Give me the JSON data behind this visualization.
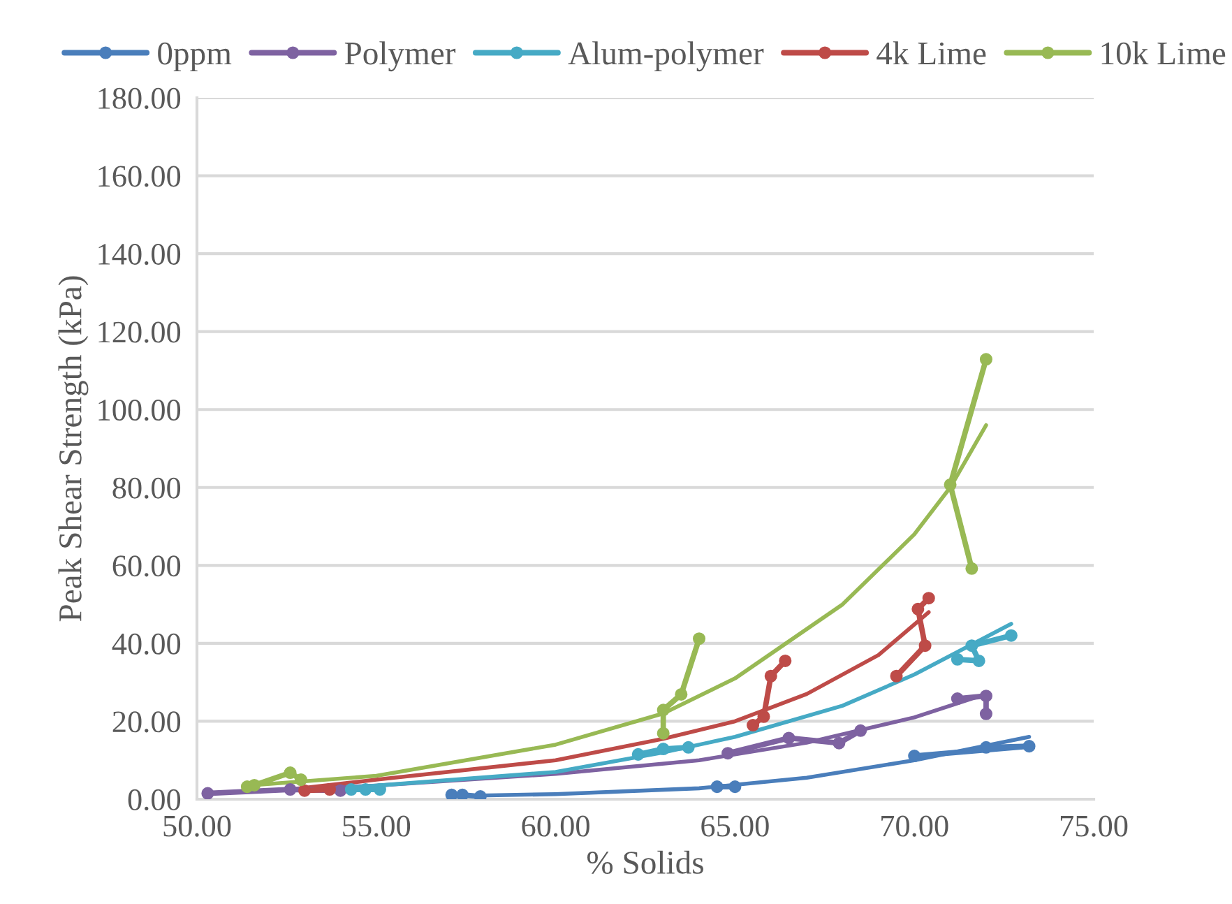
{
  "chart_data": {
    "type": "line",
    "xlabel": "% Solids",
    "ylabel": "Peak Shear Strength (kPa)",
    "marker": "circle",
    "grid": "y",
    "legend": "top",
    "xlim": [
      50,
      75
    ],
    "xticks": [
      {
        "value": 50,
        "label": "50.00"
      },
      {
        "value": 55,
        "label": "55.00"
      },
      {
        "value": 60,
        "label": "60.00"
      },
      {
        "value": 65,
        "label": "65.00"
      },
      {
        "value": 70,
        "label": "70.00"
      },
      {
        "value": 75,
        "label": "75.00"
      }
    ],
    "ylim": [
      0,
      180
    ],
    "yticks": [
      {
        "value": 0,
        "label": "0.00"
      },
      {
        "value": 20,
        "label": "20.00"
      },
      {
        "value": 40,
        "label": "40.00"
      },
      {
        "value": 60,
        "label": "60.00"
      },
      {
        "value": 80,
        "label": "80.00"
      },
      {
        "value": 100,
        "label": "100.00"
      },
      {
        "value": 120,
        "label": "120.00"
      },
      {
        "value": 140,
        "label": "140.00"
      },
      {
        "value": 160,
        "label": "160.00"
      },
      {
        "value": 180,
        "label": "180.00"
      }
    ],
    "series": [
      {
        "name": "0ppm",
        "color": "#4a7ebb",
        "x": [
          57.1,
          57.4,
          57.9
        ],
        "values": [
          1.1,
          1.1,
          0.7
        ]
      },
      {
        "color": "#4a7ebb",
        "x": [
          64.5,
          65.0
        ],
        "values": [
          3.2,
          3.2
        ]
      },
      {
        "color": "#4a7ebb",
        "x": [
          70.0,
          73.2,
          72.0
        ],
        "values": [
          11.1,
          13.6,
          13.3
        ]
      },
      {
        "name": "Polymer",
        "color": "#7e62a1",
        "x": [
          50.3,
          52.6,
          54.0
        ],
        "values": [
          1.5,
          2.5,
          2.2
        ]
      },
      {
        "color": "#7e62a1",
        "x": [
          64.8,
          66.5,
          67.9,
          68.5
        ],
        "values": [
          11.8,
          15.7,
          14.4,
          17.6
        ]
      },
      {
        "color": "#7e62a1",
        "x": [
          71.2,
          72.0,
          72.0
        ],
        "values": [
          25.8,
          26.5,
          21.9
        ]
      },
      {
        "name": "Alum-polymer",
        "color": "#46aac5",
        "x": [
          54.3,
          54.7,
          55.1
        ],
        "values": [
          2.5,
          2.5,
          2.5
        ]
      },
      {
        "color": "#46aac5",
        "x": [
          62.3,
          63.0,
          63.7
        ],
        "values": [
          11.5,
          12.9,
          13.3
        ]
      },
      {
        "color": "#46aac5",
        "x": [
          71.2,
          71.8,
          71.6,
          72.7
        ],
        "values": [
          35.9,
          35.5,
          39.4,
          42.0
        ]
      },
      {
        "name": "4k Lime",
        "color": "#be4b48",
        "x": [
          53.0,
          53.7
        ],
        "values": [
          2.2,
          2.5
        ]
      },
      {
        "color": "#be4b48",
        "x": [
          65.5,
          65.8,
          66.0,
          66.4
        ],
        "values": [
          19.0,
          21.2,
          31.6,
          35.5
        ]
      },
      {
        "color": "#be4b48",
        "x": [
          69.5,
          70.3,
          70.1,
          70.4
        ],
        "values": [
          31.6,
          39.4,
          48.8,
          51.6
        ]
      },
      {
        "name": "10k Lime",
        "color": "#98b954",
        "x": [
          51.4,
          51.6,
          52.6,
          52.9
        ],
        "values": [
          3.2,
          3.6,
          6.8,
          5.0
        ]
      },
      {
        "color": "#98b954",
        "x": [
          63.0,
          63.0,
          63.5,
          64.0
        ],
        "values": [
          16.9,
          22.9,
          26.9,
          41.2
        ]
      },
      {
        "color": "#98b954",
        "x": [
          72.0,
          71.0,
          71.6
        ],
        "values": [
          112.9,
          80.7,
          59.2
        ]
      },
      {
        "type": "line",
        "marker": "none",
        "color": "#4a7ebb",
        "x": [
          57.1,
          60,
          64,
          67,
          70,
          73.2
        ],
        "values": [
          0.8,
          1.3,
          2.8,
          5.5,
          10,
          16
        ]
      },
      {
        "type": "line",
        "marker": "none",
        "color": "#7e62a1",
        "x": [
          50.3,
          55,
          60,
          64,
          67,
          70,
          72
        ],
        "values": [
          1.5,
          3.5,
          6.5,
          10,
          14.5,
          21,
          27
        ]
      },
      {
        "type": "line",
        "marker": "none",
        "color": "#46aac5",
        "x": [
          54.3,
          60,
          63,
          65,
          68,
          70,
          72.7
        ],
        "values": [
          3,
          7,
          12,
          16,
          24,
          32,
          45
        ]
      },
      {
        "type": "line",
        "marker": "none",
        "color": "#be4b48",
        "x": [
          52.6,
          55,
          60,
          63,
          65,
          67,
          69,
          70.4
        ],
        "values": [
          2.5,
          5,
          10,
          15.5,
          20,
          27,
          37,
          48
        ]
      },
      {
        "type": "line",
        "marker": "none",
        "color": "#98b954",
        "x": [
          51.4,
          55,
          60,
          63,
          65,
          68,
          70,
          71,
          72
        ],
        "values": [
          3.5,
          6,
          14,
          22,
          31,
          50,
          68,
          80,
          96
        ]
      }
    ]
  }
}
